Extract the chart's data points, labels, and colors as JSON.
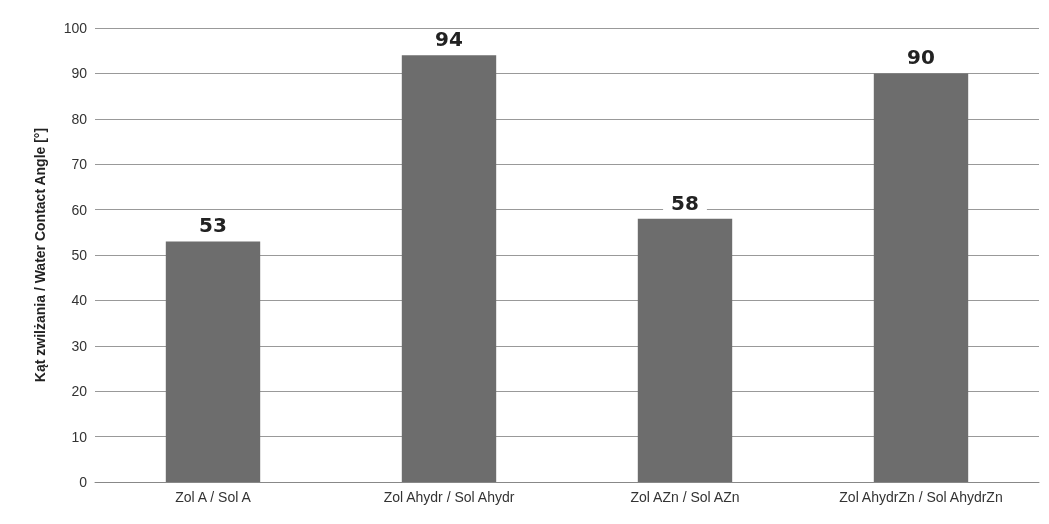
{
  "chart_data": {
    "type": "bar",
    "ylabel": "Kąt zwilżania / Water Contact Angle [°]",
    "categories": [
      "Zol A / Sol A",
      "Zol Ahydr / Sol Ahydr",
      "Zol AZn / Sol AZn",
      "Zol AhydrZn / Sol AhydrZn"
    ],
    "values": [
      53,
      94,
      58,
      90
    ],
    "color": "#6d6d6d",
    "ylim": [
      0,
      100
    ],
    "yticks": [
      0,
      10,
      20,
      30,
      40,
      50,
      60,
      70,
      80,
      90,
      100
    ],
    "grid": "y",
    "data_labels": true
  }
}
